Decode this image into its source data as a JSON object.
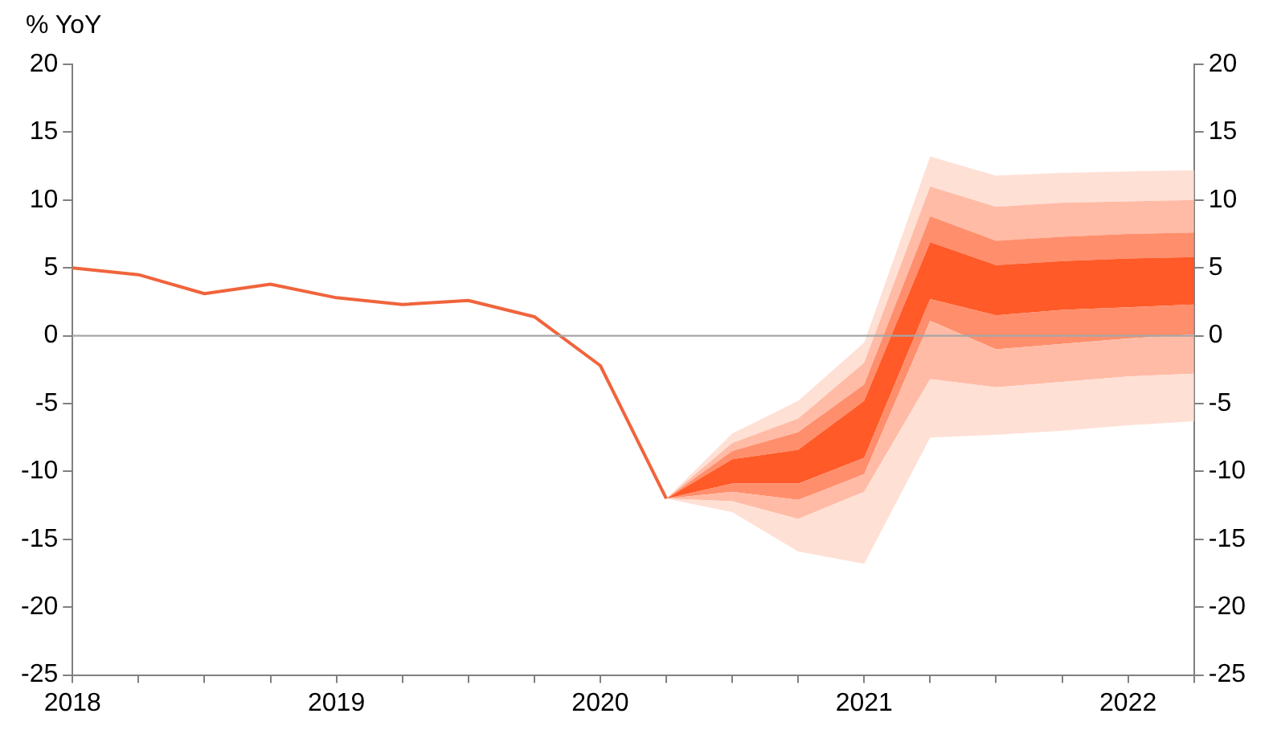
{
  "chart_data": {
    "type": "line",
    "ylabel": "% YoY",
    "xlim": [
      2018,
      2022.25
    ],
    "xticks": [
      2018,
      {
        "value": 2018.25,
        "label": null
      },
      {
        "value": 2018.5,
        "label": null
      },
      {
        "value": 2018.75,
        "label": null
      },
      2019,
      {
        "value": 2019.25,
        "label": null
      },
      {
        "value": 2019.5,
        "label": null
      },
      {
        "value": 2019.75,
        "label": null
      },
      2020,
      {
        "value": 2020.25,
        "label": null
      },
      {
        "value": 2020.5,
        "label": null
      },
      {
        "value": 2020.75,
        "label": null
      },
      2021,
      {
        "value": 2021.25,
        "label": null
      },
      {
        "value": 2021.5,
        "label": null
      },
      {
        "value": 2021.75,
        "label": null
      },
      2022,
      {
        "value": 2022.25,
        "label": null
      }
    ],
    "ylim": [
      -25,
      20
    ],
    "yticks": [
      -25,
      -20,
      -15,
      -10,
      -5,
      0,
      5,
      10,
      15,
      20
    ],
    "y2lim": [
      -25,
      20
    ],
    "y2ticks": [
      -25,
      -20,
      -15,
      -10,
      -5,
      0,
      5,
      10,
      15,
      20
    ],
    "grid": false,
    "legend": false,
    "ref_lines": [
      {
        "axis": "y",
        "value": 0,
        "color": "#a6a6a6"
      }
    ],
    "series": [
      {
        "type": "line",
        "color": "#ffe0d5",
        "x": [
          2020.25,
          2020.5,
          2020.75,
          2021,
          2021.25,
          2021.5,
          2021.75,
          2022,
          2022.25
        ],
        "values": [
          null,
          null,
          null,
          null,
          null,
          null,
          null,
          null,
          null
        ],
        "lower": [
          -12,
          -7.9,
          -6.1,
          -2,
          11,
          9.5,
          9.8,
          9.9,
          10
        ],
        "upper": [
          -12,
          -7.2,
          -4.8,
          -0.5,
          13.2,
          11.8,
          12,
          12.1,
          12.2
        ]
      },
      {
        "type": "line",
        "color": "#ffbba5",
        "x": [
          2020.25,
          2020.5,
          2020.75,
          2021,
          2021.25,
          2021.5,
          2021.75,
          2022,
          2022.25
        ],
        "values": [
          null,
          null,
          null,
          null,
          null,
          null,
          null,
          null,
          null
        ],
        "lower": [
          -12,
          -8.5,
          -7.1,
          -3.6,
          8.8,
          7,
          7.3,
          7.5,
          7.6
        ],
        "upper": [
          -12,
          -7.9,
          -6.1,
          -2,
          11,
          9.5,
          9.8,
          9.9,
          10
        ]
      },
      {
        "type": "line",
        "color": "#ff8e6c",
        "x": [
          2020.25,
          2020.5,
          2020.75,
          2021,
          2021.25,
          2021.5,
          2021.75,
          2022,
          2022.25
        ],
        "values": [
          null,
          null,
          null,
          null,
          null,
          null,
          null,
          null,
          null
        ],
        "lower": [
          -12,
          -9.1,
          -8.4,
          -4.8,
          6.9,
          5.2,
          5.5,
          5.7,
          5.8
        ],
        "upper": [
          -12,
          -8.5,
          -7.1,
          -3.6,
          8.8,
          7,
          7.3,
          7.5,
          7.6
        ]
      },
      {
        "type": "line",
        "color": "#ff5a28",
        "x": [
          2020.25,
          2020.5,
          2020.75,
          2021,
          2021.25,
          2021.5,
          2021.75,
          2022,
          2022.25
        ],
        "values": [
          null,
          null,
          null,
          null,
          null,
          null,
          null,
          null,
          null
        ],
        "lower": [
          -12,
          -10.9,
          -10.9,
          -9,
          2.7,
          1.5,
          1.9,
          2.1,
          2.3
        ],
        "upper": [
          -12,
          -9.1,
          -8.4,
          -4.8,
          6.9,
          5.2,
          5.5,
          5.7,
          5.8
        ]
      },
      {
        "type": "line",
        "color": "#ff8e6c",
        "x": [
          2020.25,
          2020.5,
          2020.75,
          2021,
          2021.25,
          2021.5,
          2021.75,
          2022,
          2022.25
        ],
        "values": [
          null,
          null,
          null,
          null,
          null,
          null,
          null,
          null,
          null
        ],
        "lower": [
          -12,
          -11.5,
          -12.1,
          -10.2,
          1.1,
          -1,
          -0.6,
          -0.2,
          0.1
        ],
        "upper": [
          -12,
          -10.9,
          -10.9,
          -9,
          2.7,
          1.5,
          1.9,
          2.1,
          2.3
        ]
      },
      {
        "type": "line",
        "color": "#ffbba5",
        "x": [
          2020.25,
          2020.5,
          2020.75,
          2021,
          2021.25,
          2021.5,
          2021.75,
          2022,
          2022.25
        ],
        "values": [
          null,
          null,
          null,
          null,
          null,
          null,
          null,
          null,
          null
        ],
        "lower": [
          -12,
          -12.2,
          -13.5,
          -11.5,
          -3.2,
          -3.8,
          -3.4,
          -3,
          -2.8
        ],
        "upper": [
          -12,
          -11.5,
          -12.1,
          -10.2,
          1.1,
          -1,
          -0.6,
          -0.2,
          0.1
        ]
      },
      {
        "type": "line",
        "color": "#ffe0d5",
        "x": [
          2020.25,
          2020.5,
          2020.75,
          2021,
          2021.25,
          2021.5,
          2021.75,
          2022,
          2022.25
        ],
        "values": [
          null,
          null,
          null,
          null,
          null,
          null,
          null,
          null,
          null
        ],
        "lower": [
          -12,
          -13,
          -15.9,
          -16.8,
          -7.5,
          -7.3,
          -7,
          -6.6,
          -6.3
        ],
        "upper": [
          -12,
          -12.2,
          -13.5,
          -11.5,
          -3.2,
          -3.8,
          -3.4,
          -3,
          -2.8
        ]
      },
      {
        "type": "line",
        "color": "#f0643c",
        "x": [
          2018,
          2018.25,
          2018.5,
          2018.75,
          2019,
          2019.25,
          2019.5,
          2019.75,
          2020,
          2020.25
        ],
        "values": [
          5,
          4.5,
          3.1,
          3.8,
          2.8,
          2.3,
          2.6,
          1.4,
          -2.2,
          -12
        ]
      }
    ]
  }
}
